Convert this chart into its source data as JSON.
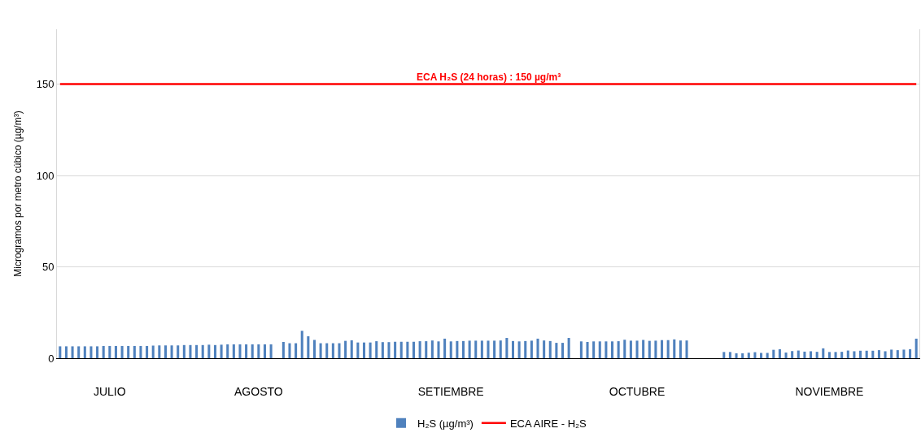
{
  "chart_data": {
    "type": "bar",
    "categories": [
      null,
      null,
      null,
      null,
      null,
      null,
      null,
      null,
      "JULIO",
      null,
      null,
      null,
      null,
      null,
      null,
      null,
      null,
      null,
      null,
      null,
      null,
      null,
      null,
      null,
      null,
      null,
      null,
      null,
      null,
      null,
      null,
      null,
      "AGOSTO",
      null,
      null,
      null,
      null,
      null,
      null,
      null,
      null,
      null,
      null,
      null,
      null,
      null,
      null,
      null,
      null,
      null,
      null,
      null,
      null,
      null,
      null,
      null,
      null,
      null,
      null,
      null,
      null,
      null,
      null,
      "SETIEMBRE",
      null,
      null,
      null,
      null,
      null,
      null,
      null,
      null,
      null,
      null,
      null,
      null,
      null,
      null,
      null,
      null,
      null,
      null,
      null,
      null,
      null,
      null,
      null,
      null,
      null,
      null,
      null,
      null,
      null,
      "OCTUBRE",
      null,
      null,
      null,
      null,
      null,
      null,
      null,
      null,
      null,
      null,
      null,
      null,
      null,
      null,
      null,
      null,
      null,
      null,
      null,
      null,
      null,
      null,
      null,
      null,
      null,
      null,
      null,
      null,
      null,
      null,
      "NOVIEMBRE",
      null,
      null,
      null,
      null,
      null,
      null,
      null,
      null,
      null,
      null,
      null,
      null,
      null,
      null
    ],
    "series": [
      {
        "name": "H₂S (µg/m³)",
        "color": "#4f81bd",
        "values": [
          6.5,
          6.5,
          6.5,
          6.5,
          6.5,
          6.5,
          6.5,
          6.7,
          6.7,
          6.7,
          6.7,
          6.7,
          6.7,
          6.7,
          6.7,
          6.9,
          7.0,
          7.0,
          7.0,
          7.0,
          7.2,
          7.2,
          7.2,
          7.2,
          7.4,
          7.2,
          7.4,
          7.6,
          7.6,
          7.6,
          7.6,
          7.6,
          7.6,
          7.6,
          7.6,
          null,
          8.9,
          8.2,
          8.2,
          15,
          12,
          10,
          8.2,
          8.2,
          8.2,
          8.2,
          9.5,
          9.8,
          8.6,
          8.6,
          8.6,
          9.3,
          8.8,
          8.8,
          9.0,
          9.0,
          9.0,
          9.0,
          9.3,
          9.3,
          9.7,
          9.2,
          10.7,
          9.2,
          9.4,
          9.4,
          9.6,
          9.6,
          9.6,
          9.6,
          9.6,
          9.7,
          11.1,
          9.4,
          9.2,
          9.4,
          9.6,
          10.7,
          9.7,
          9.4,
          8.4,
          8.4,
          11.1,
          null,
          9.2,
          8.9,
          9.2,
          9.2,
          9.2,
          9.2,
          9.3,
          10.1,
          9.6,
          9.6,
          10.0,
          9.5,
          9.6,
          9.9,
          9.9,
          10.3,
          9.7,
          9.7,
          null,
          null,
          null,
          null,
          null,
          3.4,
          3.4,
          2.7,
          2.7,
          3.0,
          3.3,
          2.9,
          2.9,
          4.6,
          4.9,
          3.1,
          3.9,
          4.2,
          3.6,
          3.8,
          3.5,
          5.4,
          3.4,
          3.4,
          3.5,
          4.2,
          3.8,
          4.1,
          4.1,
          4.1,
          4.4,
          3.8,
          4.7,
          4.4,
          4.7,
          4.9,
          10.7
        ]
      },
      {
        "name": "ECA AIRE - H₂S",
        "type": "line",
        "color": "#ff0000",
        "values": [
          150,
          150,
          150,
          150,
          150,
          150,
          150,
          150,
          150,
          150,
          150,
          150,
          150,
          150,
          150,
          150,
          150,
          150,
          150,
          150,
          150,
          150,
          150,
          150,
          150,
          150,
          150,
          150,
          150,
          150,
          150,
          150,
          150,
          150,
          150,
          150,
          150,
          150,
          150,
          150,
          150,
          150,
          150,
          150,
          150,
          150,
          150,
          150,
          150,
          150,
          150,
          150,
          150,
          150,
          150,
          150,
          150,
          150,
          150,
          150,
          150,
          150,
          150,
          150,
          150,
          150,
          150,
          150,
          150,
          150,
          150,
          150,
          150,
          150,
          150,
          150,
          150,
          150,
          150,
          150,
          150,
          150,
          150,
          150,
          150,
          150,
          150,
          150,
          150,
          150,
          150,
          150,
          150,
          150,
          150,
          150,
          150,
          150,
          150,
          150,
          150,
          150,
          150,
          150,
          150,
          150,
          150,
          150,
          150,
          150,
          150,
          150,
          150,
          150,
          150,
          150,
          150,
          150,
          150,
          150,
          150,
          150,
          150,
          150,
          150,
          150,
          150,
          150,
          150,
          150,
          150,
          150,
          150,
          150,
          150,
          150,
          150,
          150,
          150
        ]
      }
    ],
    "annotations": [
      {
        "text": "ECA H₂S (24 horas) : 150 µg/m³",
        "y": 150
      }
    ],
    "ylabel": "Microgramos por metro cúbico (µg/m³)",
    "ylim": [
      0,
      180
    ],
    "yticks": [
      0,
      50,
      100,
      150
    ],
    "grid": "y",
    "legend": "bottom"
  }
}
